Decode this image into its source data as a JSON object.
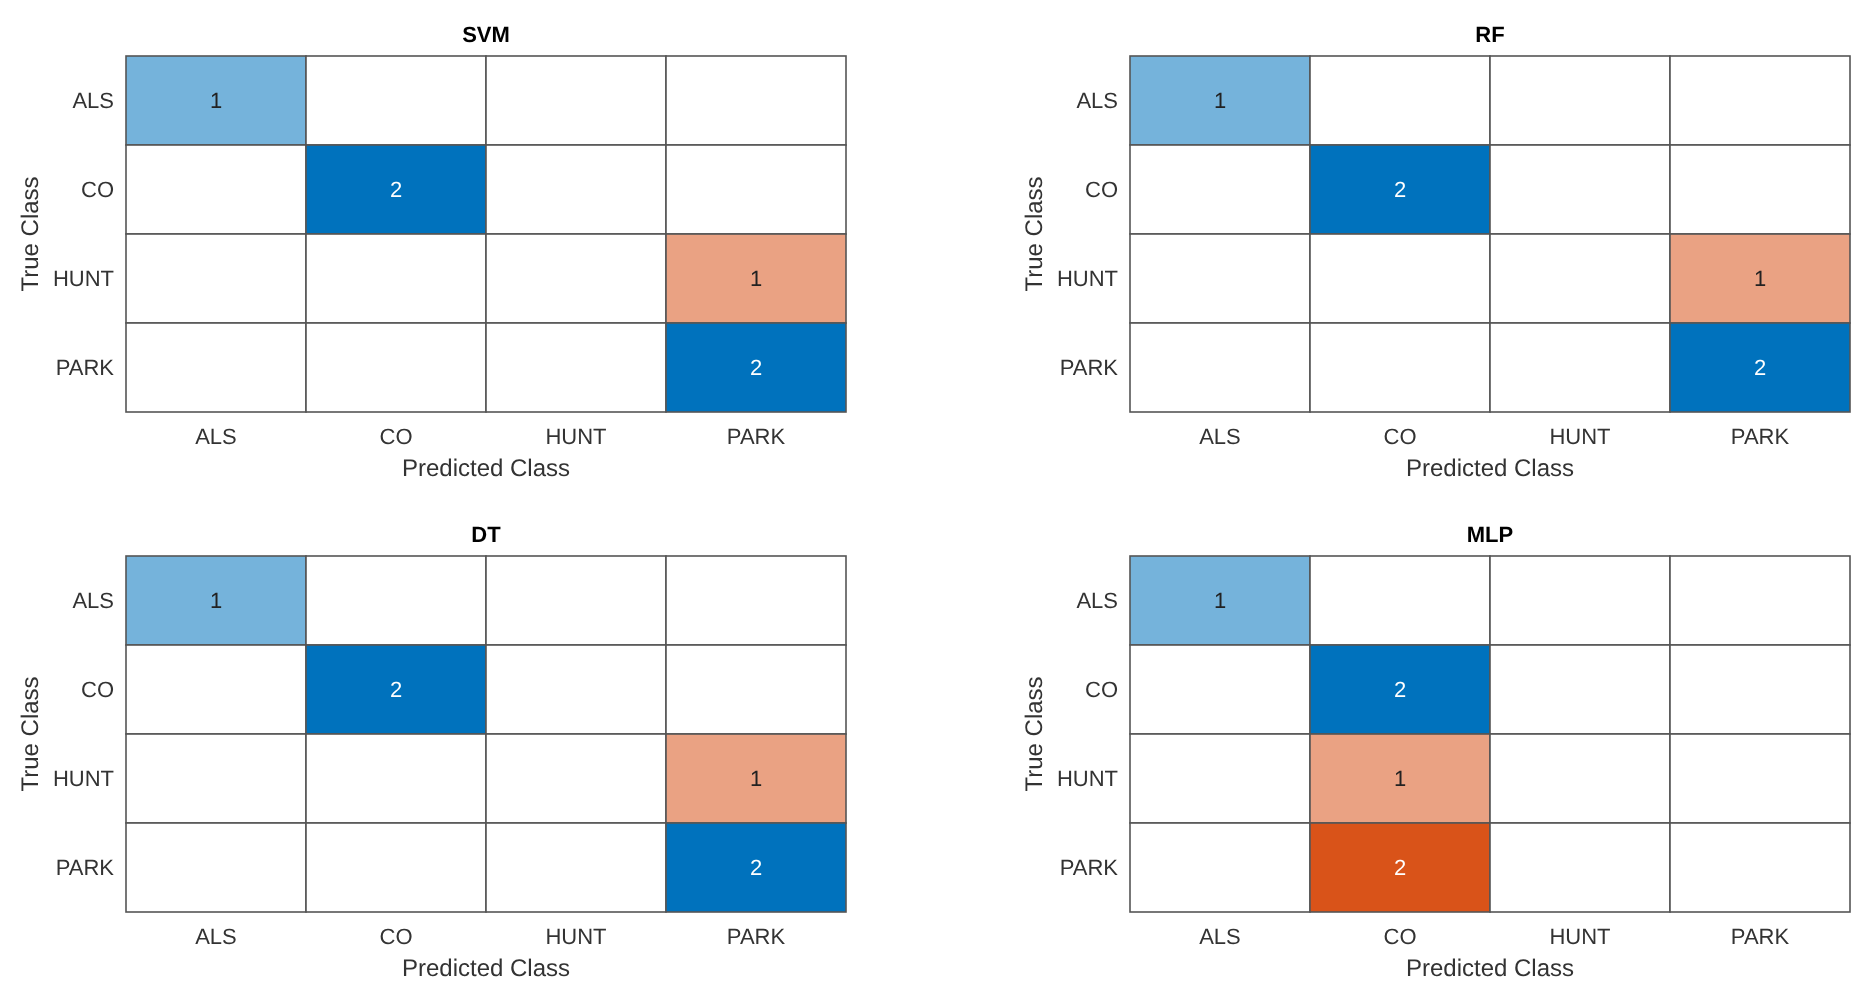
{
  "chart_data": [
    {
      "type": "heatmap",
      "title": "SVM",
      "xlabel": "Predicted Class",
      "ylabel": "True Class",
      "categories": [
        "ALS",
        "CO",
        "HUNT",
        "PARK"
      ],
      "y_categories": [
        "ALS",
        "CO",
        "HUNT",
        "PARK"
      ],
      "data_labels": true,
      "cells": [
        [
          1,
          null,
          null,
          null
        ],
        [
          null,
          2,
          null,
          null
        ],
        [
          null,
          null,
          null,
          1
        ],
        [
          null,
          null,
          null,
          2
        ]
      ]
    },
    {
      "type": "heatmap",
      "title": "RF",
      "xlabel": "Predicted Class",
      "ylabel": "True Class",
      "categories": [
        "ALS",
        "CO",
        "HUNT",
        "PARK"
      ],
      "y_categories": [
        "ALS",
        "CO",
        "HUNT",
        "PARK"
      ],
      "data_labels": true,
      "cells": [
        [
          1,
          null,
          null,
          null
        ],
        [
          null,
          2,
          null,
          null
        ],
        [
          null,
          null,
          null,
          1
        ],
        [
          null,
          null,
          null,
          2
        ]
      ]
    },
    {
      "type": "heatmap",
      "title": "DT",
      "xlabel": "Predicted Class",
      "ylabel": "True Class",
      "categories": [
        "ALS",
        "CO",
        "HUNT",
        "PARK"
      ],
      "y_categories": [
        "ALS",
        "CO",
        "HUNT",
        "PARK"
      ],
      "data_labels": true,
      "cells": [
        [
          1,
          null,
          null,
          null
        ],
        [
          null,
          2,
          null,
          null
        ],
        [
          null,
          null,
          null,
          1
        ],
        [
          null,
          null,
          null,
          2
        ]
      ]
    },
    {
      "type": "heatmap",
      "title": "MLP",
      "xlabel": "Predicted Class",
      "ylabel": "True Class",
      "categories": [
        "ALS",
        "CO",
        "HUNT",
        "PARK"
      ],
      "y_categories": [
        "ALS",
        "CO",
        "HUNT",
        "PARK"
      ],
      "data_labels": true,
      "cells": [
        [
          1,
          null,
          null,
          null
        ],
        [
          null,
          2,
          null,
          null
        ],
        [
          null,
          1,
          null,
          null
        ],
        [
          null,
          2,
          null,
          null
        ]
      ]
    }
  ]
}
